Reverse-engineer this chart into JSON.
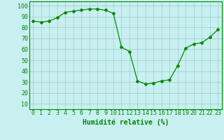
{
  "x": [
    0,
    1,
    2,
    3,
    4,
    5,
    6,
    7,
    8,
    9,
    10,
    11,
    12,
    13,
    14,
    15,
    16,
    17,
    18,
    19,
    20,
    21,
    22,
    23
  ],
  "y": [
    86,
    85,
    86,
    89,
    94,
    95,
    96,
    97,
    97,
    96,
    93,
    62,
    58,
    31,
    28,
    29,
    31,
    32,
    45,
    61,
    65,
    66,
    71,
    78
  ],
  "line_color": "#008800",
  "marker": "D",
  "marker_size": 2,
  "bg_color": "#c8f0f0",
  "grid_color": "#99cccc",
  "xlabel": "Humidité relative (%)",
  "xlabel_color": "#008800",
  "xlabel_fontsize": 7,
  "tick_color": "#008800",
  "tick_fontsize": 6,
  "yticks": [
    10,
    20,
    30,
    40,
    50,
    60,
    70,
    80,
    90,
    100
  ],
  "ylim": [
    5,
    104
  ],
  "xlim": [
    -0.5,
    23.5
  ]
}
